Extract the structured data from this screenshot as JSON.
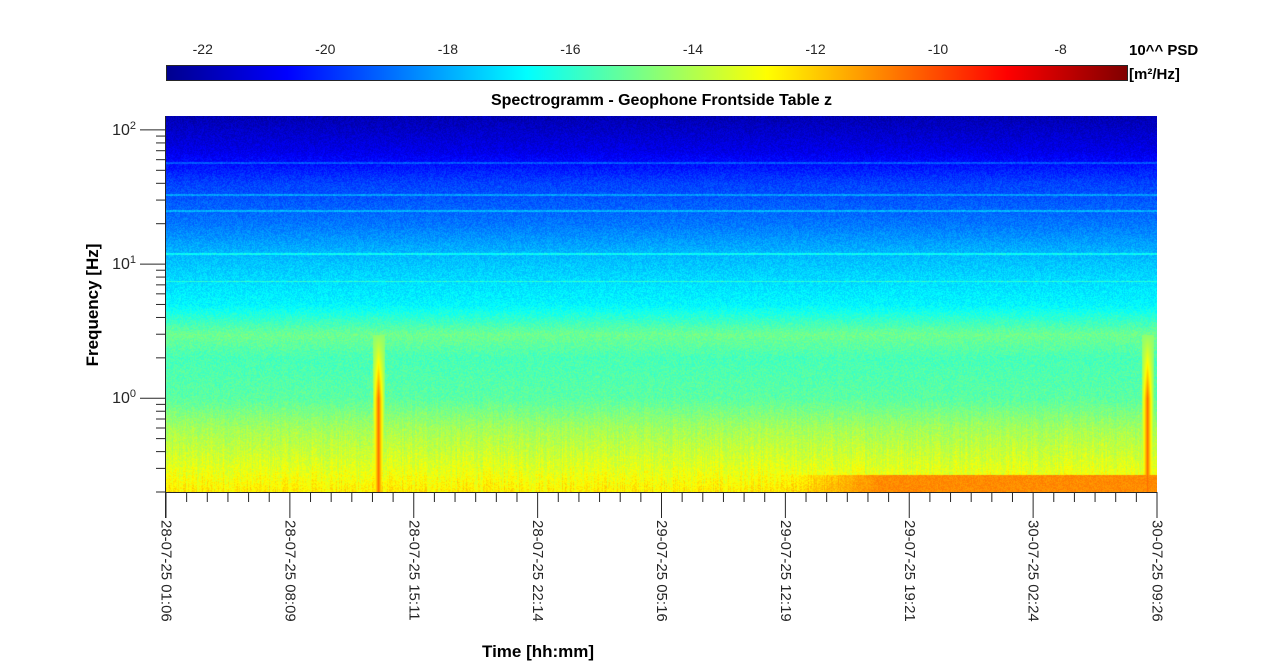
{
  "chart_data": {
    "type": "heatmap",
    "title": "Spectrogramm - Geophone Frontside Table z",
    "xlabel": "Time [hh:mm]",
    "ylabel": "Frequency [Hz]",
    "x_tick_labels": [
      "28-07-25 01:06",
      "28-07-25 08:09",
      "28-07-25 15:11",
      "28-07-25 22:14",
      "29-07-25 05:16",
      "29-07-25 12:19",
      "29-07-25 19:21",
      "30-07-25 02:24",
      "30-07-25 09:26"
    ],
    "x_minor_per_major": 6,
    "y_scale": "log",
    "y_range_hz": [
      0.2,
      127
    ],
    "y_tick_values": [
      1,
      10,
      100
    ],
    "y_tick_labels": [
      {
        "base": "10",
        "exp": "0"
      },
      {
        "base": "10",
        "exp": "1"
      },
      {
        "base": "10",
        "exp": "2"
      }
    ],
    "colorbar": {
      "label_line1": "10^^ PSD",
      "label_line2": "[m²/Hz]",
      "range": [
        -22.6,
        -6.9
      ],
      "ticks": [
        -22,
        -20,
        -18,
        -16,
        -14,
        -12,
        -10,
        -8
      ],
      "tick_labels": [
        "-22",
        "-20",
        "-18",
        "-16",
        "-14",
        "-12",
        "-10",
        "-8"
      ],
      "colormap": "jet"
    },
    "psd_profile_log10": {
      "freq_hz": [
        0.2,
        0.3,
        0.6,
        1,
        2,
        3,
        5,
        8,
        12,
        20,
        40,
        70,
        127
      ],
      "values": [
        -12.5,
        -13.2,
        -14.2,
        -15.3,
        -15.6,
        -15.0,
        -16.8,
        -17.3,
        -17.8,
        -18.8,
        -19.6,
        -21.0,
        -21.8
      ]
    },
    "events": [
      {
        "time_fraction": 0.214,
        "freq_hz_range": [
          0.2,
          3
        ],
        "peak_log10_psd": -10.5
      },
      {
        "time_fraction": 0.99,
        "freq_hz_range": [
          0.2,
          3
        ],
        "peak_log10_psd": -10.5
      }
    ],
    "narrowband_lines_hz": [
      12,
      7.5,
      25,
      33,
      57
    ],
    "low_freq_elevation": {
      "time_fraction_range": [
        0.62,
        1.0
      ],
      "freq_hz_range": [
        0.2,
        0.27
      ],
      "log10_psd": -11.0
    }
  }
}
